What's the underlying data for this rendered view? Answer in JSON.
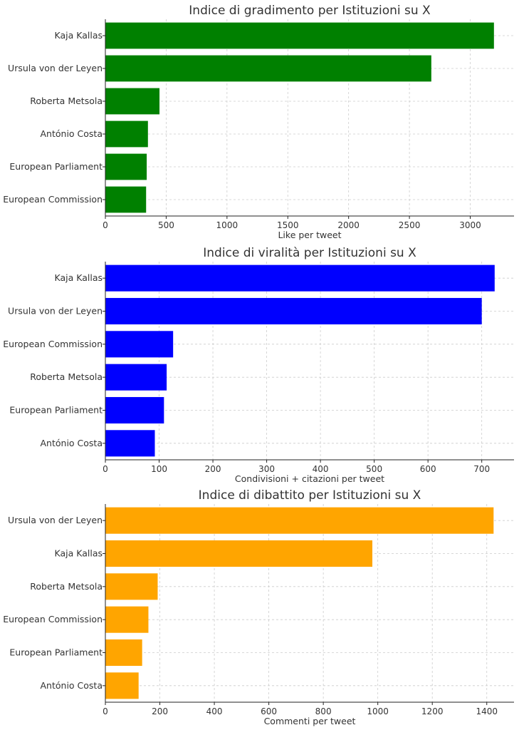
{
  "chart_data": [
    {
      "type": "bar",
      "orientation": "horizontal",
      "title": "Indice di gradimento per Istituzioni su X",
      "xlabel": "Like per tweet",
      "ylabel": "",
      "categories": [
        "Kaja Kallas",
        "Ursula von der Leyen",
        "Roberta Metsola",
        "António Costa",
        "European Parliament",
        "European Commission"
      ],
      "values": [
        3195,
        2680,
        445,
        350,
        340,
        335
      ],
      "xticks": [
        0,
        500,
        1000,
        1500,
        2000,
        2500,
        3000
      ],
      "xlim": [
        0,
        3360
      ],
      "color": "#008000",
      "grid": true
    },
    {
      "type": "bar",
      "orientation": "horizontal",
      "title": "Indice di viralità per Istituzioni su X",
      "xlabel": "Condivisioni + citazioni per tweet",
      "ylabel": "",
      "categories": [
        "Kaja Kallas",
        "Ursula von der Leyen",
        "European Commission",
        "Roberta Metsola",
        "European Parliament",
        "António Costa"
      ],
      "values": [
        724,
        700,
        126,
        114,
        109,
        92
      ],
      "xticks": [
        0,
        100,
        200,
        300,
        400,
        500,
        600,
        700
      ],
      "xlim": [
        0,
        760
      ],
      "color": "#0000FF",
      "grid": true
    },
    {
      "type": "bar",
      "orientation": "horizontal",
      "title": "Indice di dibattito per Istituzioni su X",
      "xlabel": "Commenti per tweet",
      "ylabel": "",
      "categories": [
        "Ursula von der Leyen",
        "Kaja Kallas",
        "Roberta Metsola",
        "European Commission",
        "European Parliament",
        "António Costa"
      ],
      "values": [
        1425,
        980,
        192,
        158,
        135,
        122
      ],
      "xticks": [
        0,
        200,
        400,
        600,
        800,
        1000,
        1200,
        1400
      ],
      "xlim": [
        0,
        1500
      ],
      "color": "#FFA500",
      "grid": true
    }
  ]
}
